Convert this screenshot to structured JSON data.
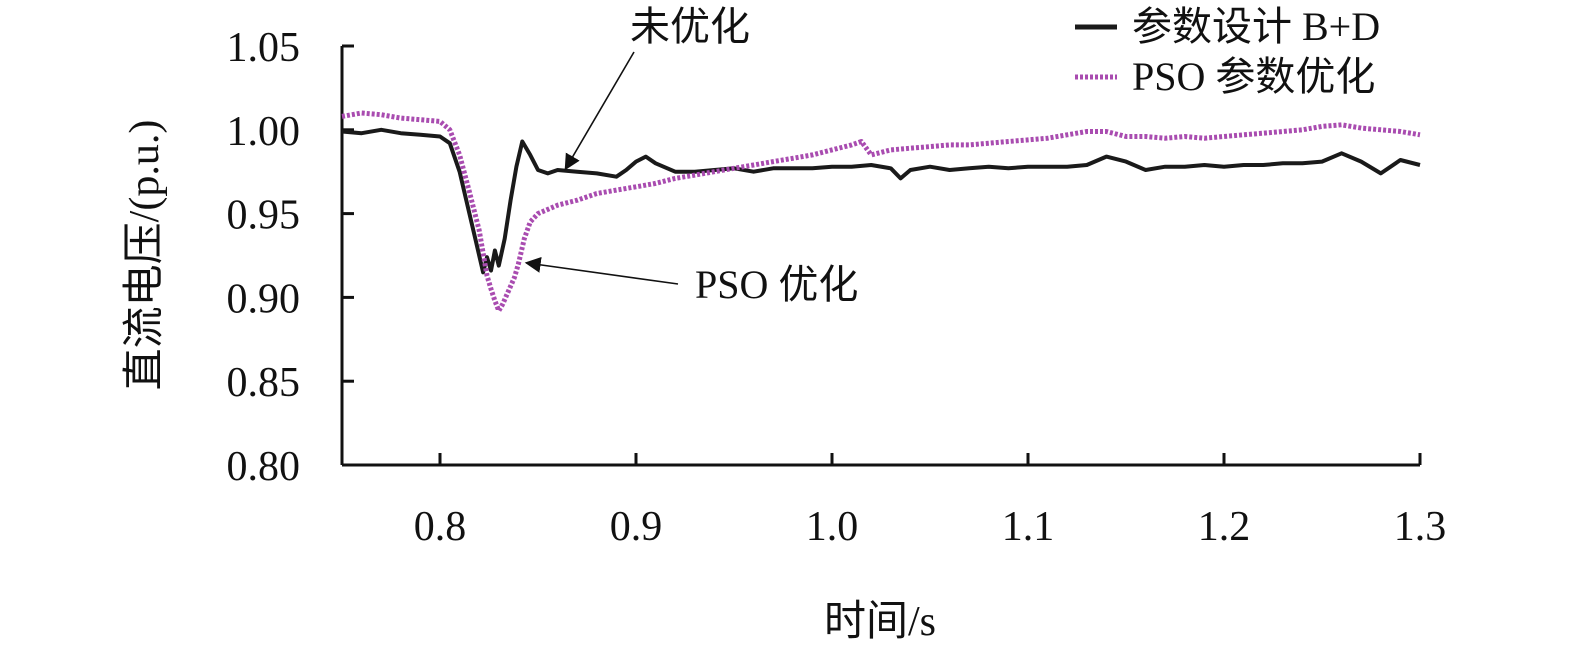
{
  "chart_data": {
    "type": "line",
    "title": "",
    "xlabel": "时间/s",
    "ylabel": "直流电压/(p.u.)",
    "xlim": [
      0.75,
      1.3
    ],
    "ylim": [
      0.8,
      1.05
    ],
    "x_ticks": [
      "0.8",
      "0.9",
      "1.0",
      "1.1",
      "1.2",
      "1.3"
    ],
    "y_ticks": [
      "0.80",
      "0.85",
      "0.90",
      "0.95",
      "1.00",
      "1.05"
    ],
    "grid": false,
    "legend_position": "top-right",
    "series": [
      {
        "name": "参数设计 B+D",
        "color": "#1a1a1a",
        "dash": "solid",
        "points": [
          [
            0.75,
            0.999
          ],
          [
            0.76,
            0.998
          ],
          [
            0.77,
            1.0
          ],
          [
            0.78,
            0.998
          ],
          [
            0.79,
            0.997
          ],
          [
            0.8,
            0.996
          ],
          [
            0.805,
            0.992
          ],
          [
            0.81,
            0.975
          ],
          [
            0.815,
            0.95
          ],
          [
            0.818,
            0.935
          ],
          [
            0.82,
            0.925
          ],
          [
            0.822,
            0.915
          ],
          [
            0.824,
            0.924
          ],
          [
            0.826,
            0.916
          ],
          [
            0.828,
            0.928
          ],
          [
            0.83,
            0.919
          ],
          [
            0.833,
            0.935
          ],
          [
            0.836,
            0.958
          ],
          [
            0.839,
            0.978
          ],
          [
            0.842,
            0.993
          ],
          [
            0.846,
            0.985
          ],
          [
            0.85,
            0.976
          ],
          [
            0.855,
            0.974
          ],
          [
            0.86,
            0.976
          ],
          [
            0.87,
            0.975
          ],
          [
            0.88,
            0.974
          ],
          [
            0.89,
            0.972
          ],
          [
            0.895,
            0.976
          ],
          [
            0.9,
            0.981
          ],
          [
            0.905,
            0.984
          ],
          [
            0.91,
            0.98
          ],
          [
            0.92,
            0.975
          ],
          [
            0.93,
            0.975
          ],
          [
            0.94,
            0.976
          ],
          [
            0.95,
            0.977
          ],
          [
            0.96,
            0.975
          ],
          [
            0.97,
            0.977
          ],
          [
            0.98,
            0.977
          ],
          [
            0.99,
            0.977
          ],
          [
            1.0,
            0.978
          ],
          [
            1.01,
            0.978
          ],
          [
            1.02,
            0.979
          ],
          [
            1.03,
            0.977
          ],
          [
            1.035,
            0.971
          ],
          [
            1.04,
            0.976
          ],
          [
            1.05,
            0.978
          ],
          [
            1.06,
            0.976
          ],
          [
            1.07,
            0.977
          ],
          [
            1.08,
            0.978
          ],
          [
            1.09,
            0.977
          ],
          [
            1.1,
            0.978
          ],
          [
            1.11,
            0.978
          ],
          [
            1.12,
            0.978
          ],
          [
            1.13,
            0.979
          ],
          [
            1.14,
            0.984
          ],
          [
            1.15,
            0.981
          ],
          [
            1.16,
            0.976
          ],
          [
            1.17,
            0.978
          ],
          [
            1.18,
            0.978
          ],
          [
            1.19,
            0.979
          ],
          [
            1.2,
            0.978
          ],
          [
            1.21,
            0.979
          ],
          [
            1.22,
            0.979
          ],
          [
            1.23,
            0.98
          ],
          [
            1.24,
            0.98
          ],
          [
            1.25,
            0.981
          ],
          [
            1.26,
            0.986
          ],
          [
            1.27,
            0.981
          ],
          [
            1.28,
            0.974
          ],
          [
            1.29,
            0.982
          ],
          [
            1.3,
            0.979
          ]
        ]
      },
      {
        "name": "PSO 参数优化",
        "color": "#a94cb0",
        "dash": "dotted",
        "points": [
          [
            0.75,
            1.008
          ],
          [
            0.76,
            1.01
          ],
          [
            0.77,
            1.009
          ],
          [
            0.78,
            1.007
          ],
          [
            0.79,
            1.006
          ],
          [
            0.8,
            1.005
          ],
          [
            0.805,
            1.0
          ],
          [
            0.81,
            0.985
          ],
          [
            0.815,
            0.963
          ],
          [
            0.82,
            0.94
          ],
          [
            0.824,
            0.913
          ],
          [
            0.826,
            0.905
          ],
          [
            0.828,
            0.898
          ],
          [
            0.83,
            0.892
          ],
          [
            0.832,
            0.896
          ],
          [
            0.835,
            0.904
          ],
          [
            0.838,
            0.912
          ],
          [
            0.84,
            0.92
          ],
          [
            0.843,
            0.935
          ],
          [
            0.846,
            0.945
          ],
          [
            0.85,
            0.95
          ],
          [
            0.86,
            0.955
          ],
          [
            0.87,
            0.958
          ],
          [
            0.88,
            0.962
          ],
          [
            0.89,
            0.964
          ],
          [
            0.9,
            0.966
          ],
          [
            0.91,
            0.968
          ],
          [
            0.92,
            0.971
          ],
          [
            0.93,
            0.973
          ],
          [
            0.94,
            0.975
          ],
          [
            0.95,
            0.977
          ],
          [
            0.96,
            0.979
          ],
          [
            0.97,
            0.981
          ],
          [
            0.98,
            0.983
          ],
          [
            0.99,
            0.985
          ],
          [
            1.0,
            0.988
          ],
          [
            1.01,
            0.991
          ],
          [
            1.015,
            0.993
          ],
          [
            1.02,
            0.985
          ],
          [
            1.03,
            0.988
          ],
          [
            1.04,
            0.989
          ],
          [
            1.05,
            0.99
          ],
          [
            1.06,
            0.991
          ],
          [
            1.07,
            0.991
          ],
          [
            1.08,
            0.992
          ],
          [
            1.09,
            0.993
          ],
          [
            1.1,
            0.994
          ],
          [
            1.11,
            0.995
          ],
          [
            1.12,
            0.997
          ],
          [
            1.13,
            0.999
          ],
          [
            1.14,
            0.999
          ],
          [
            1.15,
            0.996
          ],
          [
            1.16,
            0.996
          ],
          [
            1.17,
            0.995
          ],
          [
            1.18,
            0.996
          ],
          [
            1.19,
            0.995
          ],
          [
            1.2,
            0.996
          ],
          [
            1.21,
            0.997
          ],
          [
            1.22,
            0.998
          ],
          [
            1.23,
            0.999
          ],
          [
            1.24,
            1.0
          ],
          [
            1.25,
            1.002
          ],
          [
            1.26,
            1.003
          ],
          [
            1.27,
            1.001
          ],
          [
            1.28,
            1.0
          ],
          [
            1.29,
            0.999
          ],
          [
            1.3,
            0.997
          ]
        ]
      }
    ],
    "annotations": [
      {
        "text": "未优化",
        "target_x": 0.863,
        "target_y": 0.976,
        "series": 0
      },
      {
        "text": "PSO 优化",
        "target_x": 0.843,
        "target_y": 0.92,
        "series": 1
      }
    ]
  }
}
